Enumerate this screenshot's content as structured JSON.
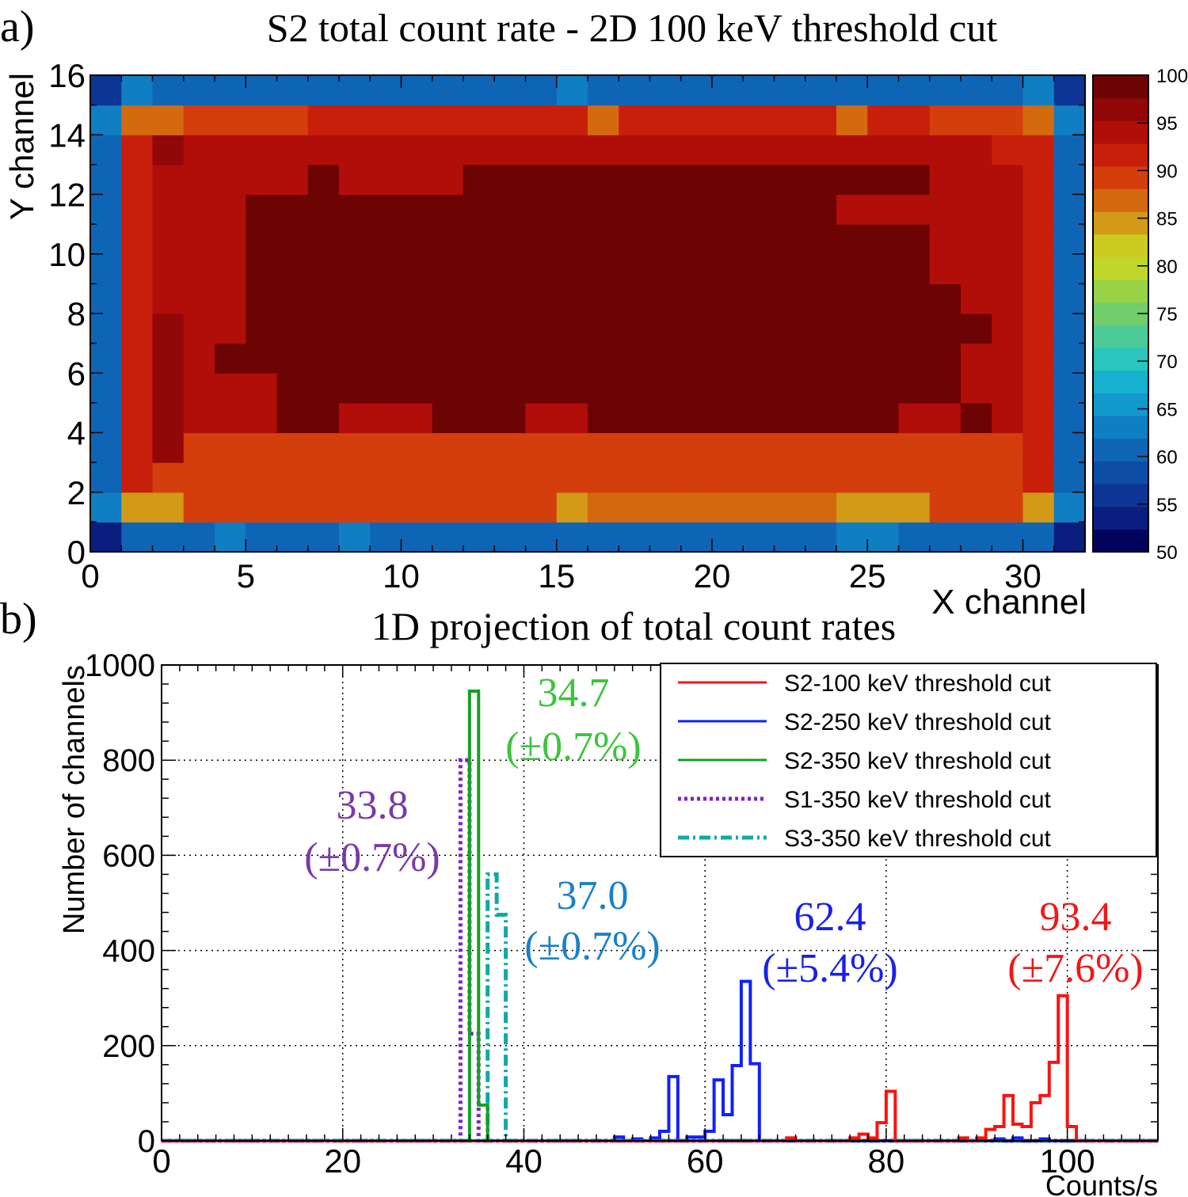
{
  "panel_a_label": "a)",
  "panel_b_label": "b)",
  "chart_data": [
    {
      "type": "heatmap",
      "title": "S2 total count rate - 2D 100 keV threshold cut",
      "xlabel": "X channel",
      "ylabel": "Y channel",
      "xlim": [
        0,
        32
      ],
      "ylim": [
        0,
        16
      ],
      "x_ticks": [
        "0",
        "5",
        "10",
        "15",
        "20",
        "25",
        "30"
      ],
      "y_ticks": [
        "0",
        "2",
        "4",
        "6",
        "8",
        "10",
        "12",
        "14",
        "16"
      ],
      "colorbar_range": [
        50,
        100
      ],
      "colorbar_ticks": [
        "50",
        "55",
        "60",
        "65",
        "70",
        "75",
        "80",
        "85",
        "90",
        "95",
        "100"
      ],
      "colorbar_colors": [
        "#02045c",
        "#0a1e80",
        "#0d3596",
        "#0e4da6",
        "#0f65b5",
        "#0f7ec2",
        "#1298cc",
        "#16b1cc",
        "#2ac6bd",
        "#4ccb98",
        "#72ce6b",
        "#97d344",
        "#bed72a",
        "#cccb1f",
        "#d29a16",
        "#d5690f",
        "#d43d0c",
        "#c81f0b",
        "#b10e09",
        "#920707",
        "#6d0404"
      ],
      "row_values_from_bottom": [
        "BEEEFEEEFEEEEEEEEEEEEEEEFFEEEEEB",
        "FOOQQQQQQQQQQQQOPPPPPPPPOOOQQQOF",
        "ERQQQQQQQQQQQQQQQQQQQQQQQQQQQQRE",
        "ERTQQQQQQQQQQQQQQQQQQQQQQQQQQQRE",
        "ERTSSSUUSSSUUUSSUUUUUUUUUUSSUSRE",
        "ERTSSSUUUUUUUUUUUUUUUUUUUUUUSSRE",
        "ERTSUUUUUUUUUUUUUUUUUUUUUUUUSSRE",
        "ERTSSUUUUUUUUUUUUUUUUUUUUUUUUSRE",
        "ERSSSUUUUUUUUUUUUUUUUUUUUUUUSSRE",
        "ERSSSUUUUUUUUUUUUUUUUUUUUUUSSSRE",
        "ERSSSUUUUUUUUUUUUUUUUUUUUUUSSSRE",
        "ERSSSUUUUUUUUUUUUUUUUUUUSSSSSSRE",
        "ERSSSSSUSSSSUUUUUUUUUUUUUUUSSSRE",
        "ERTSSSSSSSSSSSSSSSSSSSSSSSSSSRRE",
        "FPPQQQQRRRRRRRRRPRRRRRRRPRRQQQPF",
        "CFEEEEEEEEEEEEEFEEEEEEEEEEEEEEFC"
      ]
    },
    {
      "type": "line",
      "title": "1D projection of total count rates",
      "xlabel": "Counts/s",
      "ylabel": "Number of channels",
      "xlim": [
        0,
        110
      ],
      "ylim": [
        0,
        1000
      ],
      "bin_width": 1,
      "x_ticks": [
        "0",
        "20",
        "40",
        "60",
        "80",
        "100"
      ],
      "y_ticks": [
        "0",
        "200",
        "400",
        "600",
        "800",
        "1000"
      ],
      "grid": true,
      "legend_position": "top-right",
      "series": [
        {
          "name": "S2-100 keV threshold cut",
          "color": "#ff1010",
          "style": "solid",
          "bins": [
            [
              69,
              6
            ],
            [
              76,
              6
            ],
            [
              77,
              14
            ],
            [
              78,
              6
            ],
            [
              79,
              38
            ],
            [
              80,
              104
            ],
            [
              88,
              6
            ],
            [
              90,
              6
            ],
            [
              91,
              24
            ],
            [
              92,
              30
            ],
            [
              93,
              95
            ],
            [
              94,
              35
            ],
            [
              95,
              30
            ],
            [
              96,
              80
            ],
            [
              97,
              95
            ],
            [
              98,
              165
            ],
            [
              99,
              305
            ],
            [
              100,
              30
            ]
          ]
        },
        {
          "name": "S2-250 keV threshold cut",
          "color": "#1020ff",
          "style": "solid",
          "bins": [
            [
              50,
              8
            ],
            [
              52,
              4
            ],
            [
              54,
              6
            ],
            [
              55,
              20
            ],
            [
              56,
              135
            ],
            [
              58,
              8
            ],
            [
              59,
              8
            ],
            [
              60,
              20
            ],
            [
              61,
              128
            ],
            [
              62,
              55
            ],
            [
              63,
              158
            ],
            [
              64,
              335
            ],
            [
              65,
              162
            ],
            [
              90,
              4
            ],
            [
              92,
              4
            ],
            [
              94,
              6
            ],
            [
              97,
              4
            ]
          ]
        },
        {
          "name": "S2-350 keV threshold cut",
          "color": "#14a028",
          "style": "solid",
          "bins": [
            [
              34,
              945
            ],
            [
              35,
              75
            ]
          ]
        },
        {
          "name": "S1-350 keV threshold cut",
          "color": "#8020d0",
          "style": "dotted",
          "bins": [
            [
              33,
              800
            ],
            [
              34,
              225
            ]
          ]
        },
        {
          "name": "S3-350 keV threshold cut",
          "color": "#10a8a8",
          "style": "dashdot",
          "bins": [
            [
              36,
              560
            ],
            [
              37,
              475
            ]
          ]
        }
      ],
      "annotations": [
        {
          "value": "34.7",
          "error": "(±0.7%)",
          "color": "#3cc43c"
        },
        {
          "value": "33.8",
          "error": "(±0.7%)",
          "color": "#7a3aa8"
        },
        {
          "value": "37.0",
          "error": "(±0.7%)",
          "color": "#1a80c8"
        },
        {
          "value": "62.4",
          "error": "(±5.4%)",
          "color": "#1a20e8"
        },
        {
          "value": "93.4",
          "error": "(±7.6%)",
          "color": "#f01818"
        }
      ]
    }
  ]
}
